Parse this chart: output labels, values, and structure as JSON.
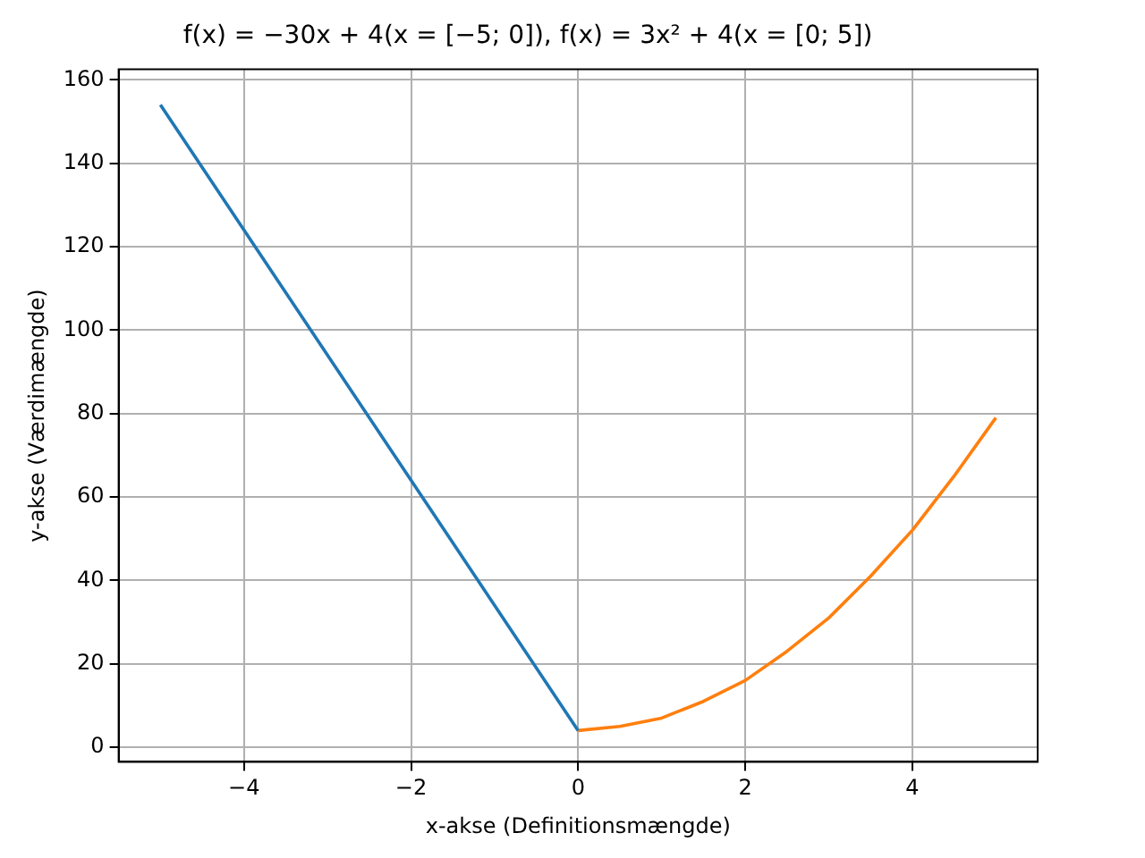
{
  "chart_data": {
    "type": "line",
    "title": "f(x) = −30x + 4(x = [−5; 0]), f(x) = 3x² + 4(x = [0; 5])",
    "xlabel": "x-akse (Definitionsmængde)",
    "ylabel": "y-akse (Værdimængde)",
    "series": [
      {
        "color": "#1f77b4",
        "x": [
          -5,
          0
        ],
        "values": [
          154,
          4
        ]
      },
      {
        "color": "#ff7f0e",
        "x": [
          0,
          0.5,
          1,
          1.5,
          2,
          2.5,
          3,
          3.5,
          4,
          4.5,
          5
        ],
        "values": [
          4,
          5,
          7,
          11,
          16,
          23,
          31,
          41,
          52,
          65,
          79
        ]
      }
    ],
    "xlim": [
      -5.5,
      5.5
    ],
    "ylim": [
      -3.5,
      162.5
    ],
    "xticks": [
      {
        "value": -4,
        "label": "−4"
      },
      {
        "value": -2,
        "label": "−2"
      },
      0,
      2,
      4
    ],
    "yticks": [
      0,
      20,
      40,
      60,
      80,
      100,
      120,
      140,
      160
    ],
    "grid": true,
    "legend": false,
    "marker": "none",
    "line_style": "solid"
  }
}
